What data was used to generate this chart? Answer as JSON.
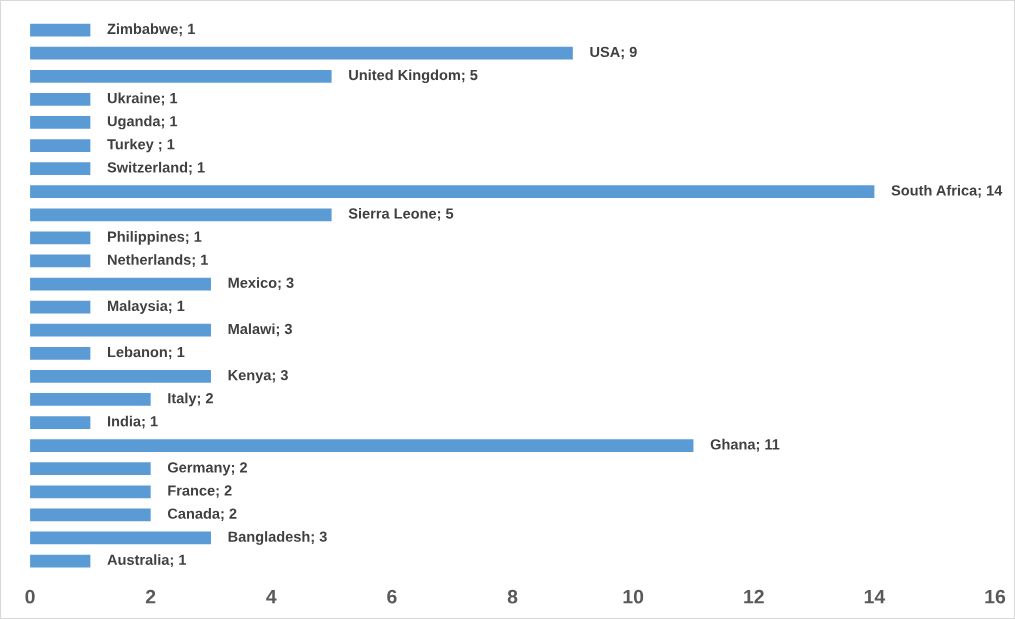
{
  "chart_data": {
    "type": "bar",
    "orientation": "horizontal",
    "categories": [
      null,
      null,
      null,
      null,
      null,
      null,
      null,
      null,
      null,
      null,
      null,
      null,
      null,
      null,
      null,
      null,
      null,
      null,
      null,
      null,
      null,
      null,
      null,
      null
    ],
    "values": [
      1,
      9,
      5,
      1,
      1,
      1,
      1,
      14,
      5,
      1,
      1,
      3,
      1,
      3,
      1,
      3,
      2,
      1,
      11,
      2,
      2,
      2,
      3,
      1
    ],
    "value_labels": [
      "Zimbabwe; 1",
      "USA; 9",
      "United Kingdom; 5",
      "Ukraine; 1",
      "Uganda; 1",
      "Turkey ; 1",
      "Switzerland; 1",
      "South Africa; 14",
      "Sierra Leone; 5",
      "Philippines; 1",
      "Netherlands; 1",
      "Mexico; 3",
      "Malaysia; 1",
      "Malawi; 3",
      "Lebanon; 1",
      "Kenya; 3",
      "Italy; 2",
      "India; 1",
      "Ghana; 11",
      "Germany; 2",
      "France; 2",
      "Canada; 2",
      "Bangladesh; 3",
      "Australia; 1"
    ],
    "color": "#5b9bd5",
    "xlim": [
      0,
      16
    ],
    "xticks": [
      0,
      2,
      4,
      6,
      8,
      10,
      12,
      14,
      16
    ],
    "tick_labels": "x",
    "grid": false
  }
}
